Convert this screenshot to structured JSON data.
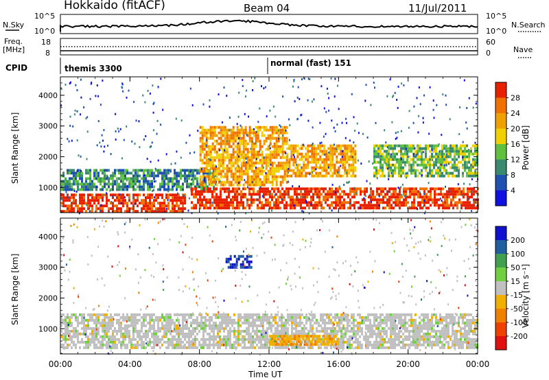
{
  "header": {
    "station": "Hokkaido (fitACF)",
    "beam": "Beam 04",
    "date": "11/Jul/2011"
  },
  "strip_nsky": {
    "left_label": "N.Sky",
    "right_label": "N.Search",
    "yticks_left": [
      "10^5",
      "10^0"
    ],
    "yticks_right": [
      "10^5",
      "10^0"
    ]
  },
  "strip_freq": {
    "left_label": "Freq.",
    "left_unit": "[MHz]",
    "right_label": "Nave",
    "yticks_left": [
      "18",
      "8"
    ],
    "yticks_right": [
      "60",
      "0"
    ]
  },
  "cpid": {
    "label": "CPID",
    "modes": [
      {
        "name": "themis 3300",
        "start_hour": 0
      },
      {
        "name": "normal (fast) 151",
        "start_hour": 12.0
      }
    ]
  },
  "chart_data": [
    {
      "type": "heatmap",
      "panel": "power",
      "ylabel": "Slant Range [km]",
      "y_ticks": [
        "1000",
        "2000",
        "3000",
        "4000"
      ],
      "ylim": [
        180,
        4600
      ],
      "xlim_hours": [
        0,
        24
      ],
      "colorbar": {
        "label": "Power [dB]",
        "ticks": [
          "4",
          "8",
          "12",
          "16",
          "20",
          "24",
          "28"
        ],
        "colors": [
          "#1010e0",
          "#2050b0",
          "#3a8a70",
          "#60c040",
          "#f0d000",
          "#f0a000",
          "#f07000",
          "#e82000"
        ]
      },
      "echo_bands": [
        {
          "x_hours": [
            0,
            7.2
          ],
          "range_km": [
            250,
            800
          ],
          "power_db": 28
        },
        {
          "x_hours": [
            0,
            9
          ],
          "range_km": [
            900,
            1600
          ],
          "power_db": 6
        },
        {
          "x_hours": [
            8,
            13
          ],
          "range_km": [
            1100,
            3000
          ],
          "power_db": 18
        },
        {
          "x_hours": [
            13,
            17
          ],
          "range_km": [
            1400,
            2400
          ],
          "power_db": 18
        },
        {
          "x_hours": [
            7.5,
            24
          ],
          "range_km": [
            300,
            1000
          ],
          "power_db": 26
        },
        {
          "x_hours": [
            18,
            24
          ],
          "range_km": [
            1400,
            2400
          ],
          "power_db": 10
        }
      ]
    },
    {
      "type": "heatmap",
      "panel": "velocity",
      "ylabel": "Slant Range [km]",
      "y_ticks": [
        "1000",
        "2000",
        "3000",
        "4000"
      ],
      "ylim": [
        180,
        4600
      ],
      "xlim_hours": [
        0,
        24
      ],
      "xlabel": "Time UT",
      "x_ticks": [
        "00:00",
        "04:00",
        "08:00",
        "12:00",
        "16:00",
        "20:00",
        "00:00"
      ],
      "colorbar": {
        "label": "Velocity [m s⁻¹]",
        "ticks": [
          "200",
          "100",
          "50",
          "15",
          "-15",
          "-50",
          "-100",
          "-200"
        ],
        "colors": [
          "#1010d0",
          "#2060a0",
          "#40a050",
          "#70d040",
          "#c0c0c0",
          "#f0b000",
          "#f08000",
          "#f04000",
          "#e01010"
        ]
      },
      "echo_bands": [
        {
          "x_hours": [
            0,
            24
          ],
          "range_km": [
            400,
            1500
          ],
          "velocity": 0
        },
        {
          "x_hours": [
            9.5,
            11
          ],
          "range_km": [
            3000,
            3400
          ],
          "velocity": 200
        },
        {
          "x_hours": [
            12,
            16
          ],
          "range_km": [
            500,
            800
          ],
          "velocity": -50
        }
      ]
    }
  ]
}
